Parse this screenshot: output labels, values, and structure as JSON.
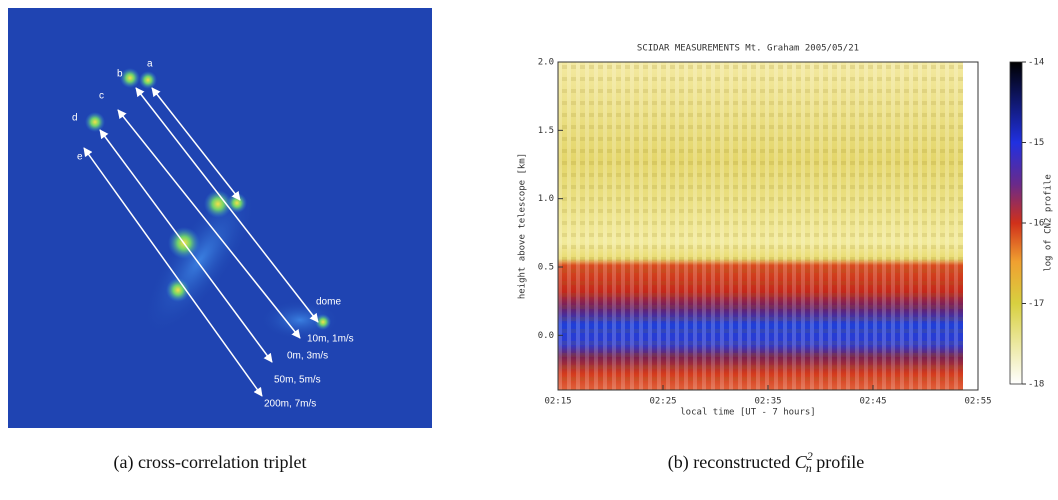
{
  "panel_a": {
    "labels": [
      "a",
      "b",
      "c",
      "d",
      "e",
      "dome"
    ],
    "annotations": [
      "10m, 1m/s",
      "0m, 3m/s",
      "50m, 5m/s",
      "200m, 7m/s"
    ],
    "caption": "(a) cross-correlation triplet"
  },
  "chart_data": {
    "type": "heatmap",
    "title": "SCIDAR MEASUREMENTS Mt. Graham 2005/05/21",
    "x_label": "local time [UT - 7 hours]",
    "y_label": "height above telescope [km]",
    "xlim": [
      135,
      175
    ],
    "xticks": [
      {
        "value": 135,
        "label": "02:15"
      },
      {
        "value": 145,
        "label": "02:25"
      },
      {
        "value": 155,
        "label": "02:35"
      },
      {
        "value": 165,
        "label": "02:45"
      },
      {
        "value": 175,
        "label": "02:55"
      }
    ],
    "ylim": [
      -0.4,
      2.0
    ],
    "yticks": [
      {
        "value": 0,
        "label": "0.0"
      },
      {
        "value": 0.5,
        "label": "0.5"
      },
      {
        "value": 1,
        "label": "1.0"
      },
      {
        "value": 1.5,
        "label": "1.5"
      },
      {
        "value": 2,
        "label": "2.0"
      }
    ],
    "colorbar": {
      "label": "log of CN2 profile",
      "lim": [
        -18,
        -14
      ],
      "ticks": [
        -14,
        -15,
        -16,
        -17,
        -18
      ]
    }
  },
  "caption_b": {
    "prefix": "(b) reconstructed",
    "symbol": "C",
    "subscript": "n",
    "superscript": "2",
    "suffix": "profile"
  }
}
